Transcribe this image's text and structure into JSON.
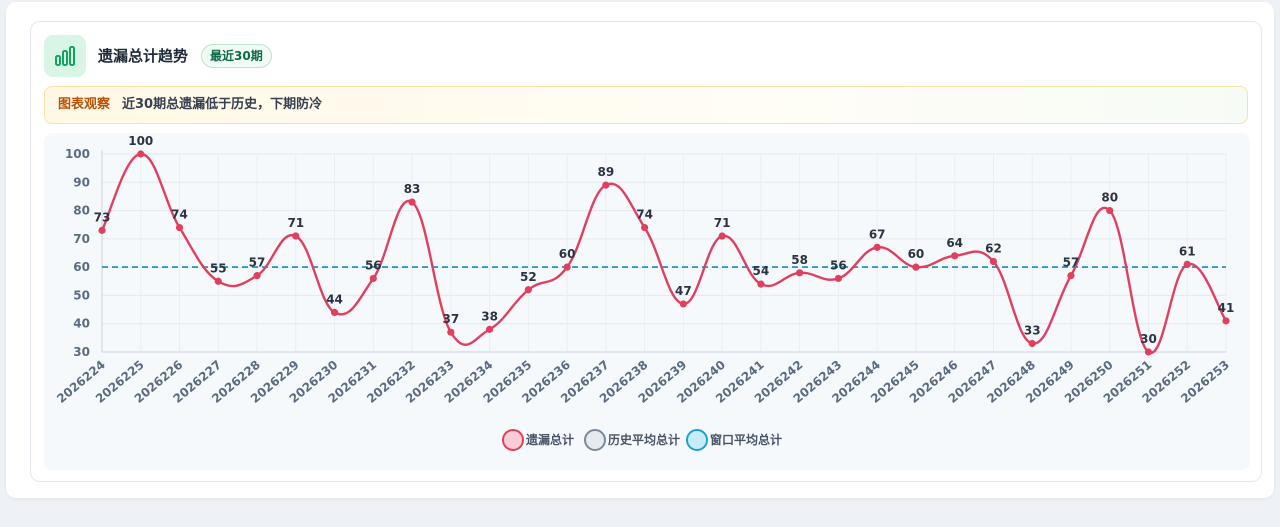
{
  "header": {
    "title": "遗漏总计趋势",
    "badge": "最近30期",
    "icon": "bar-chart-icon"
  },
  "insight": {
    "tag": "图表观察",
    "text": "近30期总遗漏低于历史，下期防冷"
  },
  "colors": {
    "series_line": "#e0405e",
    "history_avg": "#6b7f96",
    "window_avg": "#1fa2c9",
    "accent_green": "#16a35f"
  },
  "chart_data": {
    "type": "line",
    "categories": [
      "2026224",
      "2026225",
      "2026226",
      "2026227",
      "2026228",
      "2026229",
      "2026230",
      "2026231",
      "2026232",
      "2026233",
      "2026234",
      "2026235",
      "2026236",
      "2026237",
      "2026238",
      "2026239",
      "2026240",
      "2026241",
      "2026242",
      "2026243",
      "2026244",
      "2026245",
      "2026246",
      "2026247",
      "2026248",
      "2026249",
      "2026250",
      "2026251",
      "2026252",
      "2026253"
    ],
    "series": [
      {
        "name": "遗漏总计",
        "values": [
          73,
          100,
          74,
          55,
          57,
          71,
          44,
          56,
          83,
          37,
          38,
          52,
          60,
          89,
          74,
          47,
          71,
          54,
          58,
          56,
          67,
          60,
          64,
          62,
          33,
          57,
          80,
          30,
          61,
          41
        ]
      },
      {
        "name": "历史平均总计",
        "values": [
          60,
          60,
          60,
          60,
          60,
          60,
          60,
          60,
          60,
          60,
          60,
          60,
          60,
          60,
          60,
          60,
          60,
          60,
          60,
          60,
          60,
          60,
          60,
          60,
          60,
          60,
          60,
          60,
          60,
          60
        ]
      },
      {
        "name": "窗口平均总计",
        "values": [
          60,
          60,
          60,
          60,
          60,
          60,
          60,
          60,
          60,
          60,
          60,
          60,
          60,
          60,
          60,
          60,
          60,
          60,
          60,
          60,
          60,
          60,
          60,
          60,
          60,
          60,
          60,
          60,
          60,
          60
        ]
      }
    ],
    "yticks": [
      "100",
      "90",
      "80",
      "70",
      "60",
      "50",
      "40",
      "30"
    ],
    "ylim": [
      30,
      100
    ],
    "grid": true,
    "legend_position": "bottom",
    "data_labels": true
  }
}
